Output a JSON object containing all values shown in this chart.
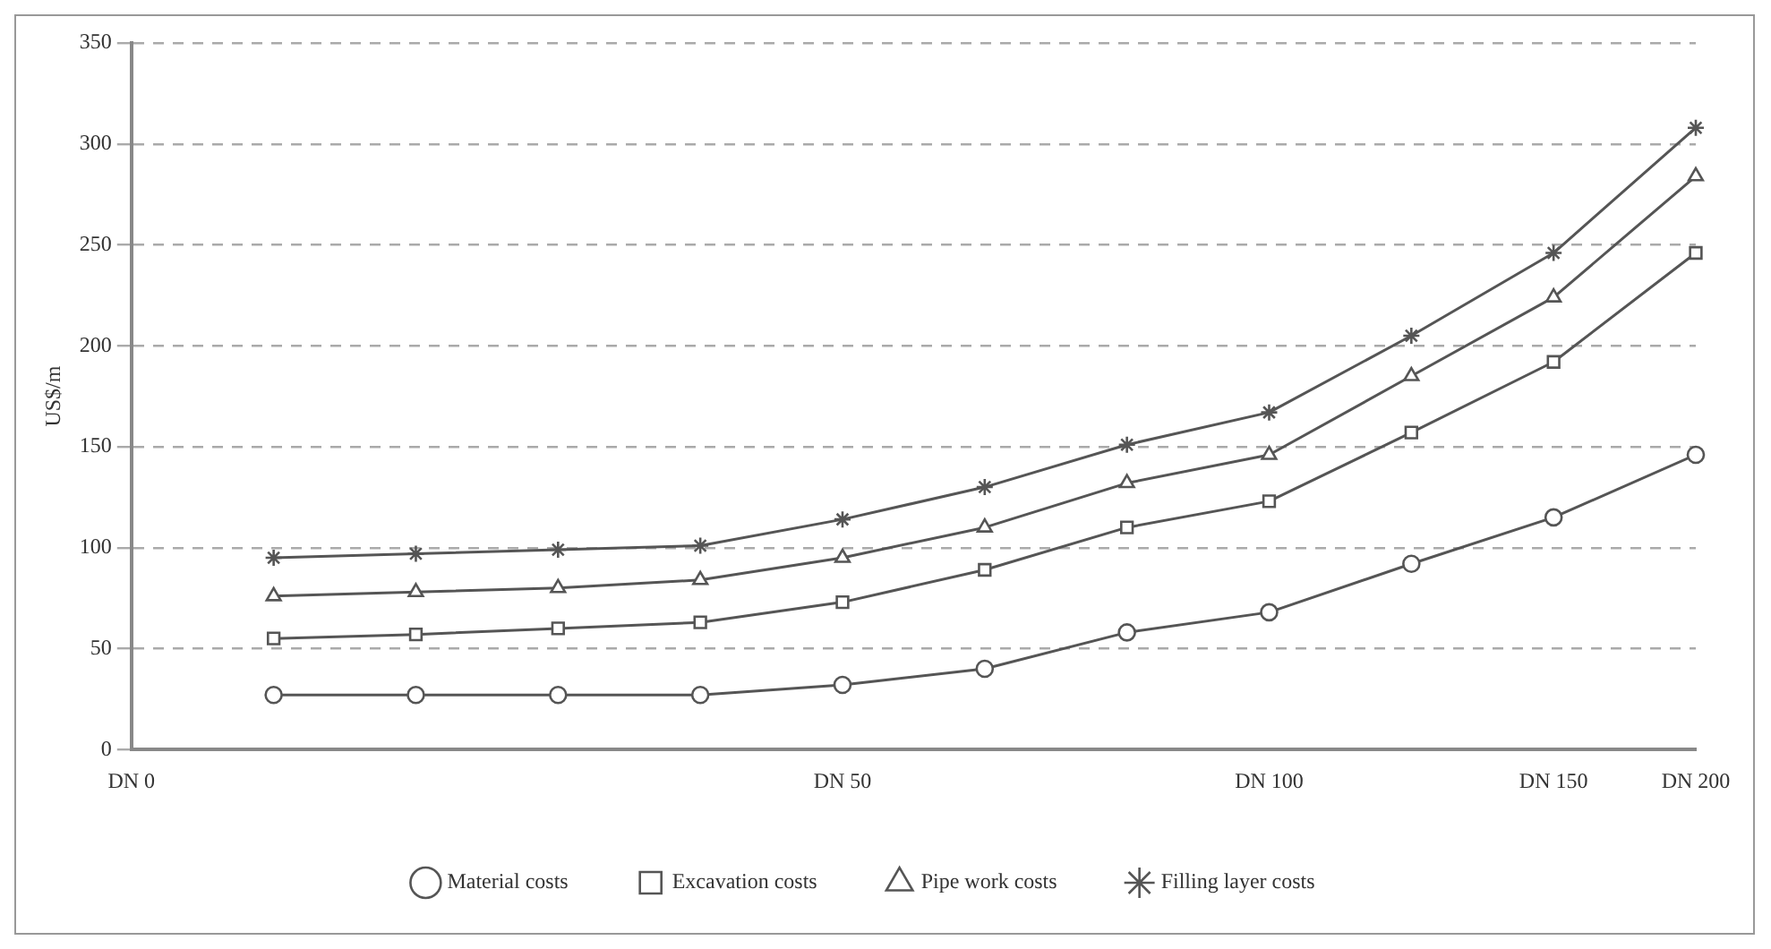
{
  "chart_data": {
    "type": "line",
    "ylabel": "US$/m",
    "ylim": [
      0,
      350
    ],
    "yticks": [
      0,
      50,
      100,
      150,
      200,
      250,
      300,
      350
    ],
    "grid": "y",
    "legend": "bottom",
    "line_style": "solid",
    "categories": [
      "DN 0",
      null,
      null,
      null,
      null,
      "DN 50",
      null,
      null,
      "DN 100",
      null,
      "DN 150",
      "DN 200"
    ],
    "series": [
      {
        "name": "Material costs",
        "color": "#555555",
        "marker": "circle",
        "values": [
          null,
          27,
          27,
          27,
          27,
          32,
          40,
          58,
          68,
          92,
          115,
          146
        ]
      },
      {
        "name": "Excavation costs",
        "color": "#555555",
        "marker": "square",
        "values": [
          null,
          55,
          57,
          60,
          63,
          73,
          89,
          110,
          123,
          157,
          192,
          246
        ]
      },
      {
        "name": "Pipe work costs",
        "color": "#555555",
        "marker": "triangle",
        "values": [
          null,
          76,
          78,
          80,
          84,
          95,
          110,
          132,
          146,
          185,
          224,
          284
        ]
      },
      {
        "name": "Filling layer costs",
        "color": "#555555",
        "marker": "cross",
        "values": [
          null,
          95,
          97,
          99,
          101,
          114,
          130,
          151,
          167,
          205,
          246,
          308
        ]
      }
    ]
  }
}
